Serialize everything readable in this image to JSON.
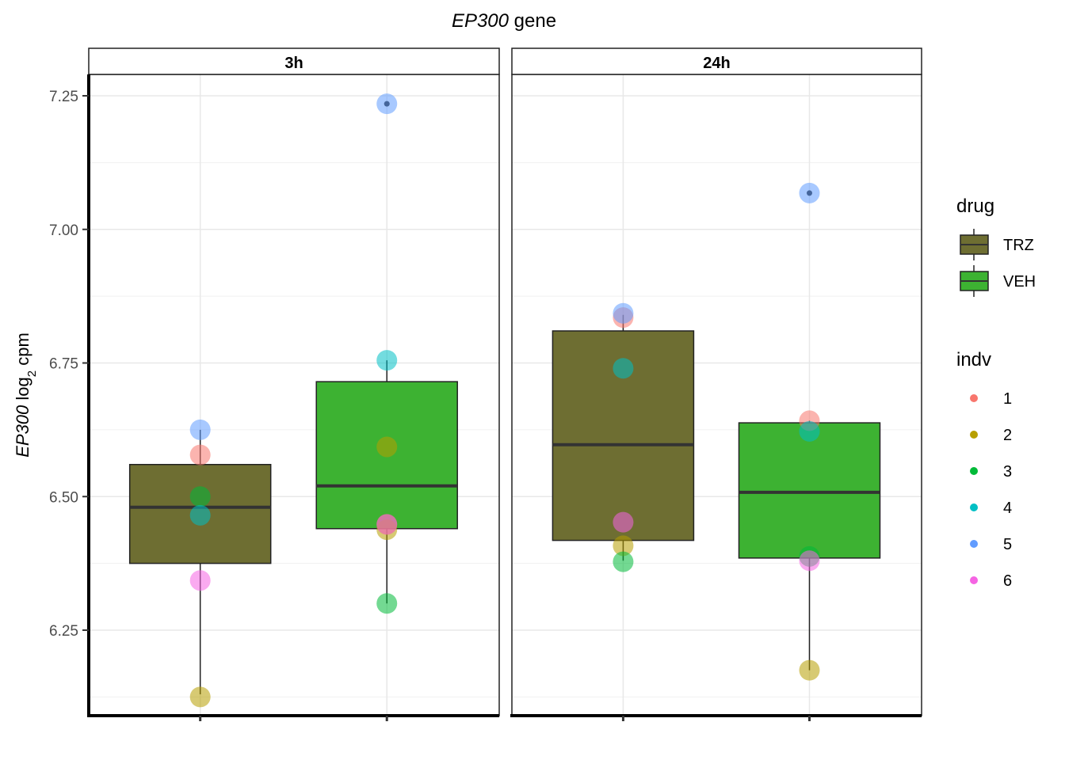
{
  "chart_data": {
    "type": "box",
    "title": {
      "italic": "EP300",
      "rest": " gene"
    },
    "ylabel": {
      "italic": "EP300",
      "log": " log",
      "sub": "2",
      "unit": " cpm"
    },
    "ylim": [
      6.09,
      7.29
    ],
    "yticks": [
      6.25,
      6.5,
      6.75,
      7.0,
      7.25
    ],
    "yticklabels": [
      "6.25",
      "6.50",
      "6.75",
      "7.00",
      "7.25"
    ],
    "panels": [
      {
        "label": "3h",
        "boxes": [
          {
            "drug": "TRZ",
            "min": 6.13,
            "q1": 6.375,
            "median": 6.48,
            "q3": 6.56,
            "max": 6.625
          },
          {
            "drug": "VEH",
            "min": 6.3,
            "q1": 6.44,
            "median": 6.52,
            "q3": 6.715,
            "max": 6.755,
            "outliers": [
              7.235
            ]
          }
        ],
        "points": [
          {
            "drug": "TRZ",
            "indv": "1",
            "y": 6.578
          },
          {
            "drug": "TRZ",
            "indv": "2",
            "y": 6.125
          },
          {
            "drug": "TRZ",
            "indv": "3",
            "y": 6.5
          },
          {
            "drug": "TRZ",
            "indv": "4",
            "y": 6.465
          },
          {
            "drug": "TRZ",
            "indv": "5",
            "y": 6.625
          },
          {
            "drug": "TRZ",
            "indv": "6",
            "y": 6.343
          },
          {
            "drug": "VEH",
            "indv": "1",
            "y": 6.448
          },
          {
            "drug": "VEH",
            "indv": "2",
            "y": 6.593
          },
          {
            "drug": "VEH",
            "indv": "2",
            "y": 6.438
          },
          {
            "drug": "VEH",
            "indv": "3",
            "y": 6.3
          },
          {
            "drug": "VEH",
            "indv": "4",
            "y": 6.755
          },
          {
            "drug": "VEH",
            "indv": "5",
            "y": 7.235
          },
          {
            "drug": "VEH",
            "indv": "6",
            "y": 6.448
          }
        ]
      },
      {
        "label": "24h",
        "boxes": [
          {
            "drug": "TRZ",
            "min": 6.38,
            "q1": 6.418,
            "median": 6.597,
            "q3": 6.81,
            "max": 6.84
          },
          {
            "drug": "VEH",
            "min": 6.175,
            "q1": 6.385,
            "median": 6.508,
            "q3": 6.638,
            "max": 6.642,
            "outliers": [
              7.068
            ]
          }
        ],
        "points": [
          {
            "drug": "TRZ",
            "indv": "1",
            "y": 6.835
          },
          {
            "drug": "TRZ",
            "indv": "2",
            "y": 6.408
          },
          {
            "drug": "TRZ",
            "indv": "3",
            "y": 6.378
          },
          {
            "drug": "TRZ",
            "indv": "4",
            "y": 6.74
          },
          {
            "drug": "TRZ",
            "indv": "5",
            "y": 6.843
          },
          {
            "drug": "TRZ",
            "indv": "6",
            "y": 6.452
          },
          {
            "drug": "VEH",
            "indv": "1",
            "y": 6.642
          },
          {
            "drug": "VEH",
            "indv": "2",
            "y": 6.175
          },
          {
            "drug": "VEH",
            "indv": "3",
            "y": 6.388
          },
          {
            "drug": "VEH",
            "indv": "4",
            "y": 6.622
          },
          {
            "drug": "VEH",
            "indv": "5",
            "y": 7.068
          },
          {
            "drug": "VEH",
            "indv": "6",
            "y": 6.38
          }
        ]
      }
    ],
    "legend": {
      "placement": "right",
      "drug": {
        "title": "drug",
        "items": [
          {
            "label": "TRZ",
            "color": "#6e6e32"
          },
          {
            "label": "VEH",
            "color": "#3db232"
          }
        ]
      },
      "indv": {
        "title": "indv",
        "items": [
          {
            "label": "1",
            "color": "#F8766D"
          },
          {
            "label": "2",
            "color": "#B79F00"
          },
          {
            "label": "3",
            "color": "#00BA38"
          },
          {
            "label": "4",
            "color": "#00BFC4"
          },
          {
            "label": "5",
            "color": "#619CFF"
          },
          {
            "label": "6",
            "color": "#F564E3"
          }
        ]
      }
    },
    "grid": true
  }
}
